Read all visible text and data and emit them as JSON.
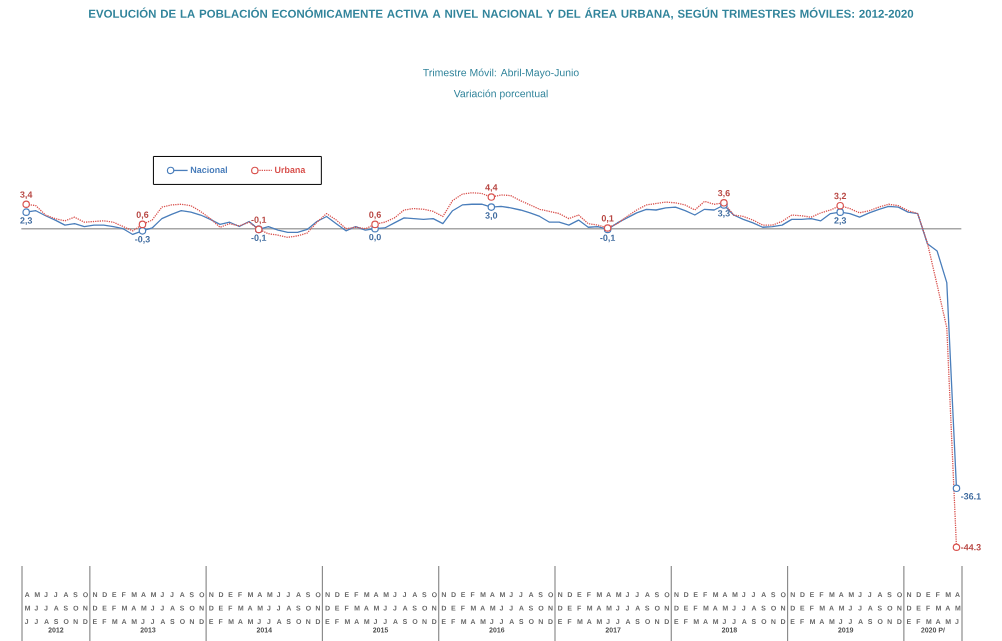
{
  "chart_data": {
    "type": "line",
    "title": "EVOLUCIÓN DE LA POBLACIÓN ECONÓMICAMENTE ACTIVA A NIVEL NACIONAL Y DEL ÁREA URBANA, SEGÚN TRIMESTRES MÓVILES: 2012-2020",
    "subtitle": "Trimestre Móvil: Abril-Mayo-Junio",
    "annotations": [
      "Variación porcentual",
      "2012",
      "2013",
      "2014",
      "2015",
      "2016",
      "2017",
      "2018",
      "2019",
      "2020 P/"
    ],
    "categories": [
      "A M J",
      "M J J",
      "J J A",
      "J A S",
      "A S O",
      "S O N",
      "O N D",
      "N D E",
      "D E F",
      "E F M",
      "F M A",
      "M A M",
      "A M J",
      "M J J",
      "J J A",
      "J A S",
      "A S O",
      "S O N",
      "O N D",
      "N D E",
      "D E F",
      "E F M",
      "F M A",
      "M A M",
      "A M J",
      "M J J",
      "J J A",
      "J A S",
      "A S O",
      "S O N",
      "O N D",
      "N D E",
      "D E F",
      "E F M",
      "F M A",
      "M A M",
      "A M J",
      "M J J",
      "J J A",
      "J A S",
      "A S O",
      "S O N",
      "O N D",
      "N D E",
      "D E F",
      "E F M",
      "F M A",
      "M A M",
      "A M J",
      "M J J",
      "J J A",
      "J A S",
      "A S O",
      "S O N",
      "O N D",
      "N D E",
      "D E F",
      "E F M",
      "F M A",
      "M A M",
      "A M J",
      "M J J",
      "J J A",
      "J A S",
      "A S O",
      "S O N",
      "O N D",
      "N D E",
      "D E F",
      "E F M",
      "F M A",
      "M A M",
      "A M J",
      "M J J",
      "J J A",
      "J A S",
      "A S O",
      "S O N",
      "O N D",
      "N D E",
      "D E F",
      "E F M",
      "F M A",
      "M A M",
      "A M J",
      "M J J",
      "J J A",
      "J A S",
      "A S O",
      "S O N",
      "O N D",
      "N D E",
      "D E F",
      "E F M",
      "F M A",
      "M A M",
      "A M J"
    ],
    "series": [
      {
        "name": "Nacional",
        "color": "#4a7ebb",
        "line_style": "solid",
        "values": [
          2.3,
          2.5,
          1.8,
          1.2,
          0.5,
          0.7,
          0.3,
          0.5,
          0.5,
          0.3,
          0.0,
          -0.8,
          -0.3,
          0.1,
          1.4,
          2.0,
          2.5,
          2.3,
          1.9,
          1.3,
          0.6,
          0.9,
          0.3,
          1.0,
          -0.1,
          0.3,
          -0.2,
          -0.5,
          -0.5,
          -0.1,
          1.0,
          1.7,
          0.7,
          -0.3,
          0.3,
          -0.2,
          0.0,
          0.1,
          0.8,
          1.5,
          1.4,
          1.3,
          1.4,
          0.7,
          2.5,
          3.3,
          3.4,
          3.4,
          3.0,
          3.1,
          2.9,
          2.6,
          2.2,
          1.7,
          0.9,
          0.9,
          0.5,
          1.2,
          0.2,
          0.3,
          -0.1,
          0.8,
          1.5,
          2.2,
          2.7,
          2.6,
          2.9,
          3.0,
          2.5,
          1.9,
          2.7,
          2.6,
          3.3,
          1.9,
          1.3,
          0.8,
          0.2,
          0.3,
          0.5,
          1.3,
          1.3,
          1.4,
          1.1,
          2.1,
          2.3,
          2.1,
          1.6,
          2.2,
          2.7,
          3.1,
          3.0,
          2.3,
          2.1,
          -2.1,
          -3.1,
          -7.5,
          -36.1
        ],
        "value_labels": [
          "2,3",
          null,
          null,
          null,
          null,
          null,
          null,
          null,
          null,
          null,
          null,
          null,
          "-0,3",
          null,
          null,
          null,
          null,
          null,
          null,
          null,
          null,
          null,
          null,
          null,
          "-0,1",
          null,
          null,
          null,
          null,
          null,
          null,
          null,
          null,
          null,
          null,
          null,
          "0,0",
          null,
          null,
          null,
          null,
          null,
          null,
          null,
          null,
          null,
          null,
          null,
          "3,0",
          null,
          null,
          null,
          null,
          null,
          null,
          null,
          null,
          null,
          null,
          null,
          "-0,1",
          null,
          null,
          null,
          null,
          null,
          null,
          null,
          null,
          null,
          null,
          null,
          "3,3",
          null,
          null,
          null,
          null,
          null,
          null,
          null,
          null,
          null,
          null,
          null,
          "2,3",
          null,
          null,
          null,
          null,
          null,
          null,
          null,
          null,
          null,
          null,
          null,
          "-36.1"
        ]
      },
      {
        "name": "Urbana",
        "color": "#d9534f",
        "line_style": "dotted",
        "values": [
          3.4,
          3.2,
          1.9,
          1.4,
          1.1,
          1.6,
          0.9,
          1.0,
          1.1,
          0.9,
          0.3,
          -0.3,
          0.6,
          1.2,
          3.0,
          3.3,
          3.4,
          3.2,
          2.4,
          1.4,
          0.2,
          0.7,
          0.4,
          0.9,
          -0.1,
          -0.7,
          -0.9,
          -1.2,
          -1.0,
          -0.6,
          0.9,
          2.1,
          1.2,
          0.0,
          0.2,
          0.0,
          0.6,
          0.9,
          1.5,
          2.6,
          2.8,
          2.7,
          2.4,
          1.7,
          3.9,
          4.8,
          5.0,
          4.9,
          4.4,
          4.7,
          4.6,
          3.9,
          3.3,
          2.7,
          2.4,
          2.1,
          1.4,
          1.9,
          0.7,
          0.5,
          0.1,
          0.7,
          1.7,
          2.6,
          3.3,
          3.5,
          3.7,
          3.6,
          3.3,
          2.6,
          3.8,
          3.4,
          3.6,
          1.9,
          1.7,
          1.2,
          0.5,
          0.5,
          1.0,
          1.9,
          1.8,
          1.6,
          2.2,
          2.6,
          3.2,
          2.8,
          2.2,
          2.5,
          3.0,
          3.4,
          3.2,
          2.5,
          2.1,
          -2.0,
          -7.8,
          -13.8,
          -44.3
        ],
        "value_labels": [
          "3,4",
          null,
          null,
          null,
          null,
          null,
          null,
          null,
          null,
          null,
          null,
          null,
          "0,6",
          null,
          null,
          null,
          null,
          null,
          null,
          null,
          null,
          null,
          null,
          null,
          "-0,1",
          null,
          null,
          null,
          null,
          null,
          null,
          null,
          null,
          null,
          null,
          null,
          "0,6",
          null,
          null,
          null,
          null,
          null,
          null,
          null,
          null,
          null,
          null,
          null,
          "4,4",
          null,
          null,
          null,
          null,
          null,
          null,
          null,
          null,
          null,
          null,
          null,
          "0,1",
          null,
          null,
          null,
          null,
          null,
          null,
          null,
          null,
          null,
          null,
          null,
          "3,6",
          null,
          null,
          null,
          null,
          null,
          null,
          null,
          null,
          null,
          null,
          null,
          "3,2",
          null,
          null,
          null,
          null,
          null,
          null,
          null,
          null,
          null,
          null,
          null,
          "-44.3"
        ]
      }
    ],
    "ref_lines": [
      {
        "axis": "y",
        "value": 0,
        "color": "#a6a6a6"
      }
    ],
    "legend": "top left",
    "grid": false
  }
}
